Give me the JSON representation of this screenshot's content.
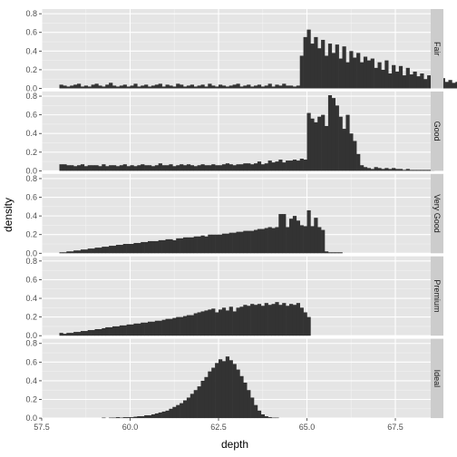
{
  "colors": {
    "panel_bg": "#e5e5e5",
    "strip_bg": "#cccccc",
    "grid_major": "#ffffff",
    "grid_minor": "#f2f2f2",
    "bar": "#333333"
  },
  "chart_data": {
    "type": "bar",
    "subtype": "histogram-facets",
    "title": "",
    "xlabel": "depth",
    "ylabel": "density",
    "xlim": [
      57.5,
      68.5
    ],
    "ylim": [
      0,
      0.85
    ],
    "x_ticks": [
      57.5,
      60.0,
      62.5,
      65.0,
      67.5
    ],
    "x_tick_labels": [
      "57.5",
      "60.0",
      "62.5",
      "65.0",
      "67.5"
    ],
    "y_ticks": [
      0.0,
      0.2,
      0.4,
      0.6,
      0.8
    ],
    "y_tick_labels": [
      "0.0",
      "0.2",
      "0.4",
      "0.6",
      "0.8"
    ],
    "grid": true,
    "facet_strip_position": "right",
    "facets": [
      {
        "name": "Fair",
        "bin_start": 58.0,
        "bin_width": 0.1,
        "values": [
          0.04,
          0.03,
          0.02,
          0.03,
          0.04,
          0.05,
          0.02,
          0.03,
          0.02,
          0.04,
          0.05,
          0.03,
          0.02,
          0.04,
          0.06,
          0.03,
          0.02,
          0.03,
          0.04,
          0.02,
          0.03,
          0.05,
          0.02,
          0.03,
          0.04,
          0.02,
          0.03,
          0.04,
          0.05,
          0.02,
          0.04,
          0.03,
          0.02,
          0.05,
          0.04,
          0.02,
          0.03,
          0.04,
          0.02,
          0.03,
          0.04,
          0.02,
          0.05,
          0.03,
          0.02,
          0.04,
          0.03,
          0.02,
          0.03,
          0.04,
          0.05,
          0.02,
          0.03,
          0.04,
          0.02,
          0.03,
          0.04,
          0.02,
          0.03,
          0.05,
          0.02,
          0.04,
          0.03,
          0.05,
          0.03,
          0.03,
          0.02,
          0.03,
          0.35,
          0.55,
          0.63,
          0.48,
          0.55,
          0.43,
          0.52,
          0.35,
          0.48,
          0.38,
          0.47,
          0.32,
          0.45,
          0.28,
          0.4,
          0.33,
          0.38,
          0.28,
          0.34,
          0.3,
          0.32,
          0.22,
          0.28,
          0.2,
          0.3,
          0.16,
          0.25,
          0.18,
          0.24,
          0.14,
          0.22,
          0.15,
          0.18,
          0.13,
          0.16,
          0.1,
          0.14,
          0.12,
          0.13,
          0.09,
          0.11,
          0.07,
          0.09,
          0.06,
          0.07,
          0.05,
          0.05,
          0.04,
          0.04,
          0.03,
          0.03,
          0.03
        ]
      },
      {
        "name": "Good",
        "bin_start": 58.0,
        "bin_width": 0.1,
        "values": [
          0.07,
          0.07,
          0.06,
          0.06,
          0.05,
          0.06,
          0.07,
          0.05,
          0.06,
          0.06,
          0.06,
          0.05,
          0.07,
          0.05,
          0.06,
          0.06,
          0.05,
          0.06,
          0.07,
          0.05,
          0.06,
          0.05,
          0.06,
          0.07,
          0.06,
          0.06,
          0.05,
          0.06,
          0.08,
          0.06,
          0.06,
          0.07,
          0.05,
          0.06,
          0.07,
          0.06,
          0.07,
          0.06,
          0.05,
          0.06,
          0.07,
          0.06,
          0.06,
          0.07,
          0.06,
          0.06,
          0.07,
          0.08,
          0.07,
          0.06,
          0.07,
          0.07,
          0.08,
          0.08,
          0.07,
          0.08,
          0.1,
          0.07,
          0.08,
          0.11,
          0.09,
          0.1,
          0.12,
          0.09,
          0.11,
          0.11,
          0.12,
          0.11,
          0.13,
          0.12,
          0.62,
          0.56,
          0.52,
          0.58,
          0.6,
          0.48,
          0.81,
          0.78,
          0.7,
          0.58,
          0.45,
          0.6,
          0.4,
          0.32,
          0.18,
          0.06,
          0.04,
          0.03,
          0.02,
          0.04,
          0.03,
          0.02,
          0.03,
          0.02,
          0.03,
          0.02,
          0.02,
          0.01,
          0.02,
          0.01,
          0.01,
          0.01,
          0.01,
          0.01,
          0.01,
          0.01
        ]
      },
      {
        "name": "Very Good",
        "bin_start": 58.0,
        "bin_width": 0.1,
        "values": [
          0.01,
          0.01,
          0.02,
          0.02,
          0.03,
          0.03,
          0.04,
          0.04,
          0.05,
          0.05,
          0.06,
          0.06,
          0.07,
          0.07,
          0.08,
          0.08,
          0.09,
          0.09,
          0.1,
          0.1,
          0.1,
          0.11,
          0.11,
          0.12,
          0.12,
          0.13,
          0.13,
          0.13,
          0.14,
          0.14,
          0.15,
          0.15,
          0.14,
          0.16,
          0.16,
          0.17,
          0.17,
          0.17,
          0.18,
          0.18,
          0.19,
          0.18,
          0.2,
          0.2,
          0.2,
          0.2,
          0.21,
          0.21,
          0.22,
          0.22,
          0.23,
          0.23,
          0.24,
          0.24,
          0.24,
          0.25,
          0.26,
          0.26,
          0.27,
          0.28,
          0.27,
          0.28,
          0.42,
          0.42,
          0.28,
          0.37,
          0.4,
          0.35,
          0.3,
          0.29,
          0.46,
          0.29,
          0.38,
          0.28,
          0.25,
          0.02,
          0.01,
          0.01,
          0.01,
          0.01
        ]
      },
      {
        "name": "Premium",
        "bin_start": 58.0,
        "bin_width": 0.1,
        "values": [
          0.03,
          0.02,
          0.03,
          0.03,
          0.04,
          0.04,
          0.05,
          0.05,
          0.06,
          0.06,
          0.07,
          0.07,
          0.08,
          0.09,
          0.09,
          0.1,
          0.1,
          0.11,
          0.11,
          0.12,
          0.12,
          0.13,
          0.13,
          0.14,
          0.14,
          0.15,
          0.15,
          0.16,
          0.16,
          0.17,
          0.18,
          0.18,
          0.19,
          0.2,
          0.2,
          0.21,
          0.22,
          0.22,
          0.24,
          0.25,
          0.26,
          0.27,
          0.28,
          0.29,
          0.25,
          0.28,
          0.3,
          0.27,
          0.31,
          0.26,
          0.3,
          0.31,
          0.33,
          0.32,
          0.34,
          0.33,
          0.34,
          0.32,
          0.35,
          0.33,
          0.34,
          0.36,
          0.33,
          0.35,
          0.32,
          0.34,
          0.33,
          0.35,
          0.3,
          0.25,
          0.2
        ]
      },
      {
        "name": "Ideal",
        "bin_start": 58.0,
        "bin_width": 0.1,
        "values": [
          0,
          0,
          0,
          0,
          0,
          0,
          0,
          0,
          0,
          0,
          0,
          0,
          0.005,
          0,
          0.005,
          0.005,
          0.01,
          0.005,
          0.01,
          0.01,
          0.01,
          0.015,
          0.02,
          0.02,
          0.03,
          0.03,
          0.04,
          0.05,
          0.06,
          0.07,
          0.08,
          0.1,
          0.12,
          0.14,
          0.16,
          0.19,
          0.22,
          0.26,
          0.3,
          0.34,
          0.4,
          0.44,
          0.5,
          0.54,
          0.59,
          0.63,
          0.61,
          0.66,
          0.62,
          0.58,
          0.52,
          0.45,
          0.38,
          0.3,
          0.22,
          0.14,
          0.08,
          0.04,
          0.02,
          0.01,
          0.005,
          0.005
        ]
      }
    ]
  }
}
